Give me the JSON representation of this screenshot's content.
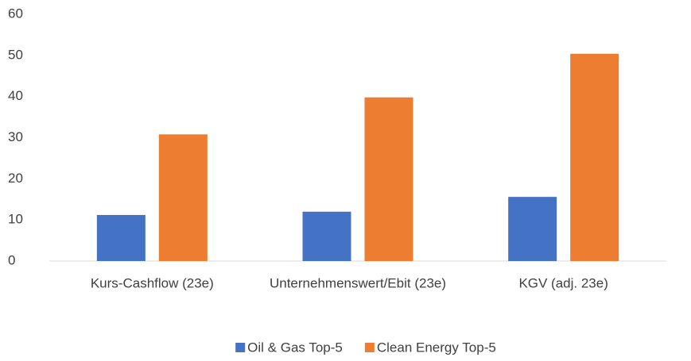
{
  "chart_data": {
    "type": "bar",
    "categories": [
      "Kurs-Cashflow (23e)",
      "Unternehmenswert/Ebit (23e)",
      "KGV (adj. 23e)"
    ],
    "series": [
      {
        "name": "Oil & Gas Top-5",
        "color": "#4472c4",
        "values": [
          11.2,
          12.0,
          15.6
        ]
      },
      {
        "name": "Clean Energy Top-5",
        "color": "#ed7d31",
        "values": [
          30.8,
          39.8,
          50.4
        ]
      }
    ],
    "ylim": [
      0,
      60
    ],
    "yticks": [
      0,
      10,
      20,
      30,
      40,
      50,
      60
    ],
    "grid": false,
    "legend": "bottom"
  }
}
